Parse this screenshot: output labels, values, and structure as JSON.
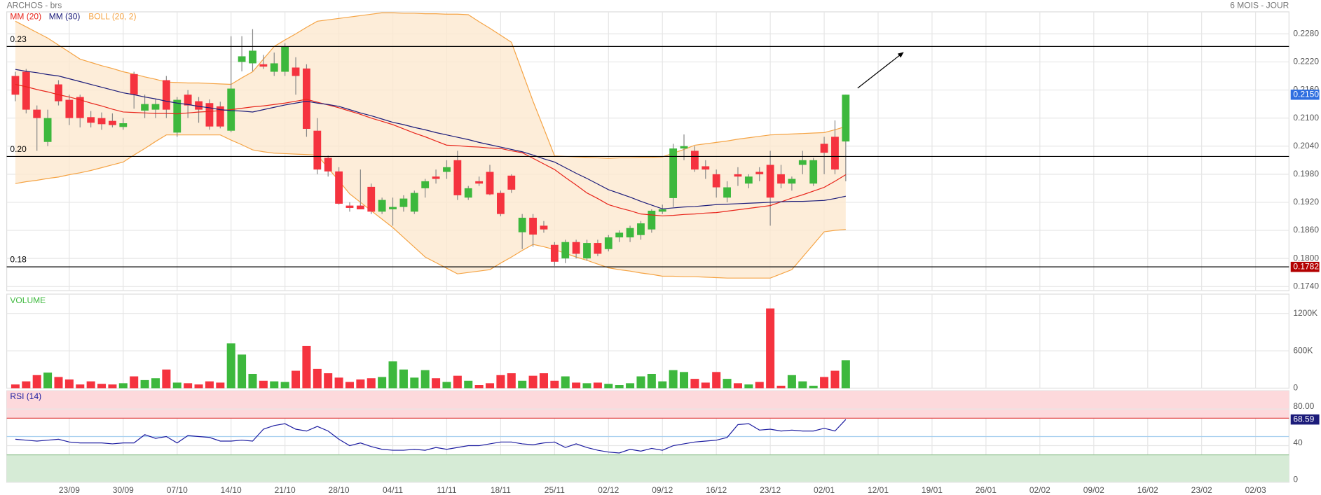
{
  "chart_data": [
    {
      "type": "candlestick",
      "title": "ARCHOS - brs",
      "subtitle": "6 MOIS - JOUR",
      "up_color": "#3db83d",
      "down_color": "#f5333f",
      "ylim": [
        0.1731,
        0.2327
      ],
      "yticks": [
        {
          "value": 0.228,
          "label": "0.2280"
        },
        {
          "value": 0.222,
          "label": "0.2220"
        },
        {
          "value": 0.216,
          "label": "0.2160"
        },
        {
          "value": 0.21,
          "label": "0.2100"
        },
        {
          "value": 0.204,
          "label": "0.2040"
        },
        {
          "value": 0.198,
          "label": "0.1980"
        },
        {
          "value": 0.192,
          "label": "0.1920"
        },
        {
          "value": 0.186,
          "label": "0.1860"
        },
        {
          "value": 0.18,
          "label": "0.1800"
        },
        {
          "value": 0.174,
          "label": "0.1740"
        }
      ],
      "grid": true,
      "levels": [
        {
          "value": 0.2253,
          "label": "0.23"
        },
        {
          "value": 0.2018,
          "label": "0.20"
        },
        {
          "value": 0.1782,
          "label": "0.18"
        }
      ],
      "price_tags": [
        {
          "value": 0.215,
          "label": "0.2150",
          "color": "#2f6fe0"
        },
        {
          "value": 0.1782,
          "label": "0.1782",
          "color": "#b30000"
        }
      ],
      "open": [
        0.219,
        0.2199,
        0.2118,
        0.2049,
        0.2172,
        0.2139,
        0.2145,
        0.2102,
        0.21,
        0.2094,
        0.2081,
        0.2194,
        0.2116,
        0.2118,
        0.2181,
        0.2069,
        0.215,
        0.2136,
        0.2132,
        0.2125,
        0.2073,
        0.222,
        0.2217,
        0.2215,
        0.2199,
        0.2199,
        0.2208,
        0.2206,
        0.2073,
        0.2015,
        0.1986,
        0.1913,
        0.1913,
        0.1953,
        0.19,
        0.1905,
        0.191,
        0.19,
        0.195,
        0.1975,
        0.1985,
        0.201,
        0.193,
        0.1965,
        0.1985,
        0.194,
        0.1977,
        0.1856,
        0.1887,
        0.187,
        0.1829,
        0.18,
        0.1835,
        0.18,
        0.1833,
        0.182,
        0.1845,
        0.1845,
        0.185,
        0.1862,
        0.19,
        0.1929,
        0.2035,
        0.203,
        0.1997,
        0.198,
        0.193,
        0.198,
        0.196,
        0.1985,
        0.2,
        0.198,
        0.196,
        0.2,
        0.196,
        0.2045,
        0.206,
        0.205
      ],
      "high": [
        0.2199,
        0.2205,
        0.2127,
        0.2118,
        0.2181,
        0.215,
        0.215,
        0.2115,
        0.2112,
        0.211,
        0.21,
        0.2199,
        0.215,
        0.214,
        0.219,
        0.2145,
        0.216,
        0.2145,
        0.214,
        0.2135,
        0.2275,
        0.2275,
        0.229,
        0.2235,
        0.224,
        0.226,
        0.223,
        0.2215,
        0.21,
        0.202,
        0.1995,
        0.192,
        0.199,
        0.196,
        0.193,
        0.193,
        0.1935,
        0.1945,
        0.197,
        0.199,
        0.201,
        0.203,
        0.1955,
        0.1975,
        0.2,
        0.1945,
        0.198,
        0.1895,
        0.1895,
        0.188,
        0.1835,
        0.184,
        0.184,
        0.184,
        0.184,
        0.185,
        0.186,
        0.187,
        0.188,
        0.1905,
        0.1915,
        0.2045,
        0.2065,
        0.204,
        0.201,
        0.199,
        0.1965,
        0.1995,
        0.198,
        0.1995,
        0.203,
        0.2,
        0.1975,
        0.203,
        0.2015,
        0.206,
        0.2095,
        0.215
      ],
      "low": [
        0.2136,
        0.211,
        0.203,
        0.204,
        0.2127,
        0.2085,
        0.208,
        0.208,
        0.2075,
        0.208,
        0.2075,
        0.212,
        0.21,
        0.21,
        0.21,
        0.206,
        0.21,
        0.209,
        0.2075,
        0.2078,
        0.207,
        0.22,
        0.22,
        0.2205,
        0.219,
        0.219,
        0.215,
        0.206,
        0.198,
        0.1975,
        0.1915,
        0.19,
        0.1905,
        0.1895,
        0.1895,
        0.187,
        0.19,
        0.1895,
        0.193,
        0.196,
        0.197,
        0.1925,
        0.1925,
        0.1955,
        0.1935,
        0.189,
        0.194,
        0.182,
        0.1825,
        0.1855,
        0.1784,
        0.179,
        0.18,
        0.1795,
        0.1805,
        0.1815,
        0.1835,
        0.1835,
        0.184,
        0.1855,
        0.1895,
        0.191,
        0.201,
        0.1985,
        0.197,
        0.193,
        0.192,
        0.1955,
        0.195,
        0.1965,
        0.187,
        0.195,
        0.1945,
        0.198,
        0.1955,
        0.198,
        0.198,
        0.1965
      ],
      "close": [
        0.215,
        0.2118,
        0.21,
        0.21,
        0.2136,
        0.21,
        0.21,
        0.209,
        0.2087,
        0.2085,
        0.2089,
        0.215,
        0.213,
        0.213,
        0.2118,
        0.2139,
        0.2127,
        0.2118,
        0.2082,
        0.2082,
        0.2163,
        0.2232,
        0.2244,
        0.221,
        0.2217,
        0.2253,
        0.219,
        0.2077,
        0.199,
        0.1986,
        0.1917,
        0.1908,
        0.1905,
        0.19,
        0.1925,
        0.191,
        0.1928,
        0.194,
        0.1965,
        0.197,
        0.1995,
        0.1935,
        0.195,
        0.196,
        0.1937,
        0.1895,
        0.1947,
        0.1887,
        0.1851,
        0.1862,
        0.1793,
        0.1835,
        0.181,
        0.1833,
        0.181,
        0.1845,
        0.1855,
        0.1865,
        0.1875,
        0.1902,
        0.1905,
        0.2035,
        0.204,
        0.199,
        0.199,
        0.1952,
        0.1952,
        0.1975,
        0.1975,
        0.198,
        0.193,
        0.196,
        0.197,
        0.201,
        0.201,
        0.2026,
        0.199,
        0.215
      ],
      "series": [
        {
          "name": "MM (20)",
          "color": "#e8261c",
          "values": [
            0.2172,
            0.2167,
            0.2161,
            0.2156,
            0.215,
            0.2145,
            0.2139,
            0.2132,
            0.2126,
            0.2119,
            0.2113,
            0.2112,
            0.2111,
            0.211,
            0.211,
            0.2109,
            0.2111,
            0.2113,
            0.2114,
            0.2116,
            0.2118,
            0.2121,
            0.2124,
            0.2126,
            0.2129,
            0.2132,
            0.2136,
            0.214,
            0.2134,
            0.2128,
            0.2122,
            0.2115,
            0.2108,
            0.21,
            0.2093,
            0.2086,
            0.2077,
            0.2068,
            0.206,
            0.2051,
            0.2042,
            0.2041,
            0.2039,
            0.2038,
            0.2036,
            0.2035,
            0.203,
            0.2026,
            0.2014,
            0.2002,
            0.199,
            0.1973,
            0.1957,
            0.194,
            0.1928,
            0.1915,
            0.1908,
            0.1902,
            0.1895,
            0.1893,
            0.1891,
            0.1892,
            0.1894,
            0.1895,
            0.1897,
            0.1898,
            0.1901,
            0.1904,
            0.1907,
            0.191,
            0.1913,
            0.1921,
            0.1929,
            0.1936,
            0.1944,
            0.1952,
            0.1965,
            0.1979
          ]
        },
        {
          "name": "MM (30)",
          "color": "#1c1c7a",
          "values": [
            0.2204,
            0.22,
            0.2197,
            0.2193,
            0.219,
            0.2184,
            0.2178,
            0.2172,
            0.2166,
            0.216,
            0.2154,
            0.215,
            0.2145,
            0.2141,
            0.2136,
            0.2132,
            0.2129,
            0.2125,
            0.2122,
            0.2118,
            0.2116,
            0.2115,
            0.2113,
            0.2118,
            0.2123,
            0.2128,
            0.2132,
            0.2136,
            0.2132,
            0.2129,
            0.2125,
            0.2118,
            0.2111,
            0.2105,
            0.2098,
            0.2091,
            0.2086,
            0.208,
            0.2075,
            0.2069,
            0.2064,
            0.2059,
            0.2054,
            0.2048,
            0.2043,
            0.2038,
            0.2033,
            0.2028,
            0.2021,
            0.2013,
            0.2006,
            0.1994,
            0.1982,
            0.1971,
            0.1959,
            0.1947,
            0.1939,
            0.1931,
            0.1922,
            0.1914,
            0.1906,
            0.1908,
            0.191,
            0.1911,
            0.1913,
            0.1915,
            0.1916,
            0.1917,
            0.1918,
            0.1919,
            0.192,
            0.1921,
            0.1922,
            0.1922,
            0.1923,
            0.1924,
            0.1928,
            0.1933
          ]
        },
        {
          "name": "BOLL (20, 2)",
          "color": "#f5a445",
          "fill": "#fde8d0",
          "upper": [
            0.2307,
            0.2295,
            0.2283,
            0.2271,
            0.2256,
            0.2241,
            0.2226,
            0.2219,
            0.2212,
            0.2206,
            0.2199,
            0.2194,
            0.2188,
            0.2183,
            0.2177,
            0.2176,
            0.2175,
            0.2175,
            0.2174,
            0.2173,
            0.2172,
            0.2186,
            0.2199,
            0.2226,
            0.2253,
            0.2267,
            0.228,
            0.2294,
            0.2307,
            0.231,
            0.2313,
            0.2316,
            0.2319,
            0.2322,
            0.2325,
            0.2325,
            0.2324,
            0.2324,
            0.2323,
            0.2323,
            0.2322,
            0.2322,
            0.2321,
            0.2306,
            0.2292,
            0.2277,
            0.2262,
            0.2199,
            0.2136,
            0.2078,
            0.2019,
            0.2018,
            0.2017,
            0.2016,
            0.2015,
            0.2014,
            0.2015,
            0.2015,
            0.2016,
            0.2016,
            0.2017,
            0.2025,
            0.2033,
            0.2042,
            0.2045,
            0.2048,
            0.2051,
            0.2055,
            0.2058,
            0.2061,
            0.2064,
            0.2065,
            0.2066,
            0.2067,
            0.2068,
            0.2069,
            0.2075,
            0.2082
          ],
          "lower": [
            0.196,
            0.1964,
            0.1967,
            0.1971,
            0.1974,
            0.1979,
            0.1983,
            0.1988,
            0.1994,
            0.2,
            0.2006,
            0.2021,
            0.2035,
            0.205,
            0.2064,
            0.2064,
            0.2064,
            0.2064,
            0.2064,
            0.2064,
            0.2053,
            0.2043,
            0.2032,
            0.2028,
            0.2025,
            0.2024,
            0.2023,
            0.2022,
            0.2021,
            0.1993,
            0.1966,
            0.1938,
            0.192,
            0.1902,
            0.1884,
            0.1866,
            0.1845,
            0.1824,
            0.1803,
            0.1791,
            0.1779,
            0.1767,
            0.177,
            0.1773,
            0.1776,
            0.179,
            0.1803,
            0.1817,
            0.183,
            0.1825,
            0.1819,
            0.1811,
            0.1803,
            0.1796,
            0.1788,
            0.178,
            0.1776,
            0.1773,
            0.1769,
            0.1766,
            0.1762,
            0.1762,
            0.1761,
            0.1761,
            0.176,
            0.1759,
            0.1758,
            0.1758,
            0.1758,
            0.1758,
            0.1758,
            0.1767,
            0.1776,
            0.1803,
            0.183,
            0.1857,
            0.186,
            0.1862
          ]
        }
      ]
    },
    {
      "type": "bar",
      "title": "VOLUME",
      "ylim": [
        0,
        1510000
      ],
      "yticks": [
        0,
        {
          "value": 600000,
          "label": "600K"
        },
        {
          "value": 1200000,
          "label": "1200K"
        }
      ],
      "grid": true,
      "values": [
        60000,
        110000,
        210000,
        250000,
        180000,
        140000,
        60000,
        110000,
        70000,
        60000,
        80000,
        190000,
        130000,
        160000,
        300000,
        90000,
        80000,
        60000,
        110000,
        90000,
        720000,
        540000,
        230000,
        120000,
        110000,
        100000,
        280000,
        680000,
        310000,
        240000,
        170000,
        100000,
        140000,
        160000,
        180000,
        430000,
        300000,
        170000,
        290000,
        160000,
        100000,
        200000,
        120000,
        50000,
        80000,
        210000,
        240000,
        120000,
        200000,
        240000,
        120000,
        190000,
        90000,
        80000,
        90000,
        70000,
        50000,
        80000,
        190000,
        230000,
        110000,
        290000,
        260000,
        150000,
        90000,
        260000,
        150000,
        80000,
        60000,
        100000,
        1280000,
        40000,
        210000,
        110000,
        40000,
        180000,
        280000,
        450000
      ]
    },
    {
      "type": "line",
      "title": "RSI (14)",
      "color": "#1c1ca0",
      "ylim": [
        0,
        100
      ],
      "yticks": [
        0,
        40,
        {
          "value": 80,
          "label": "80.00"
        }
      ],
      "grid": true,
      "overbought": 70,
      "oversold": 30,
      "midline": 50,
      "last_tag": {
        "value": 68.59,
        "label": "68.59",
        "color": "#1c1c7a"
      },
      "xlim": [
        -0.8,
        118.1
      ],
      "xticks": [
        {
          "value": 5,
          "label": "23/09"
        },
        {
          "value": 10,
          "label": "30/09"
        },
        {
          "value": 15,
          "label": "07/10"
        },
        {
          "value": 20,
          "label": "14/10"
        },
        {
          "value": 25,
          "label": "21/10"
        },
        {
          "value": 30,
          "label": "28/10"
        },
        {
          "value": 35,
          "label": "04/11"
        },
        {
          "value": 40,
          "label": "11/11"
        },
        {
          "value": 45,
          "label": "18/11"
        },
        {
          "value": 50,
          "label": "25/11"
        },
        {
          "value": 55,
          "label": "02/12"
        },
        {
          "value": 60,
          "label": "09/12"
        },
        {
          "value": 65,
          "label": "16/12"
        },
        {
          "value": 70,
          "label": "23/12"
        },
        {
          "value": 75,
          "label": "02/01"
        },
        {
          "value": 80,
          "label": "12/01"
        },
        {
          "value": 85,
          "label": "19/01"
        },
        {
          "value": 90,
          "label": "26/01"
        },
        {
          "value": 95,
          "label": "02/02"
        },
        {
          "value": 100,
          "label": "09/02"
        },
        {
          "value": 105,
          "label": "16/02"
        },
        {
          "value": 110,
          "label": "23/02"
        },
        {
          "value": 115,
          "label": "02/03"
        }
      ],
      "values": [
        47,
        46,
        45,
        46,
        47,
        44,
        43,
        43,
        43,
        42,
        43,
        43,
        52,
        48,
        50,
        43,
        51,
        50,
        49,
        45,
        45,
        46,
        45,
        58,
        62,
        64,
        58,
        56,
        61,
        56,
        47,
        40,
        43,
        39,
        36,
        35,
        35,
        36,
        35,
        38,
        36,
        38,
        40,
        40,
        42,
        44,
        44,
        42,
        41,
        43,
        44,
        38,
        42,
        38,
        35,
        33,
        32,
        36,
        34,
        37,
        35,
        40,
        42,
        44,
        45,
        46,
        49,
        63,
        64,
        57,
        58,
        56,
        57,
        56,
        56,
        59,
        56,
        68.59
      ]
    }
  ]
}
